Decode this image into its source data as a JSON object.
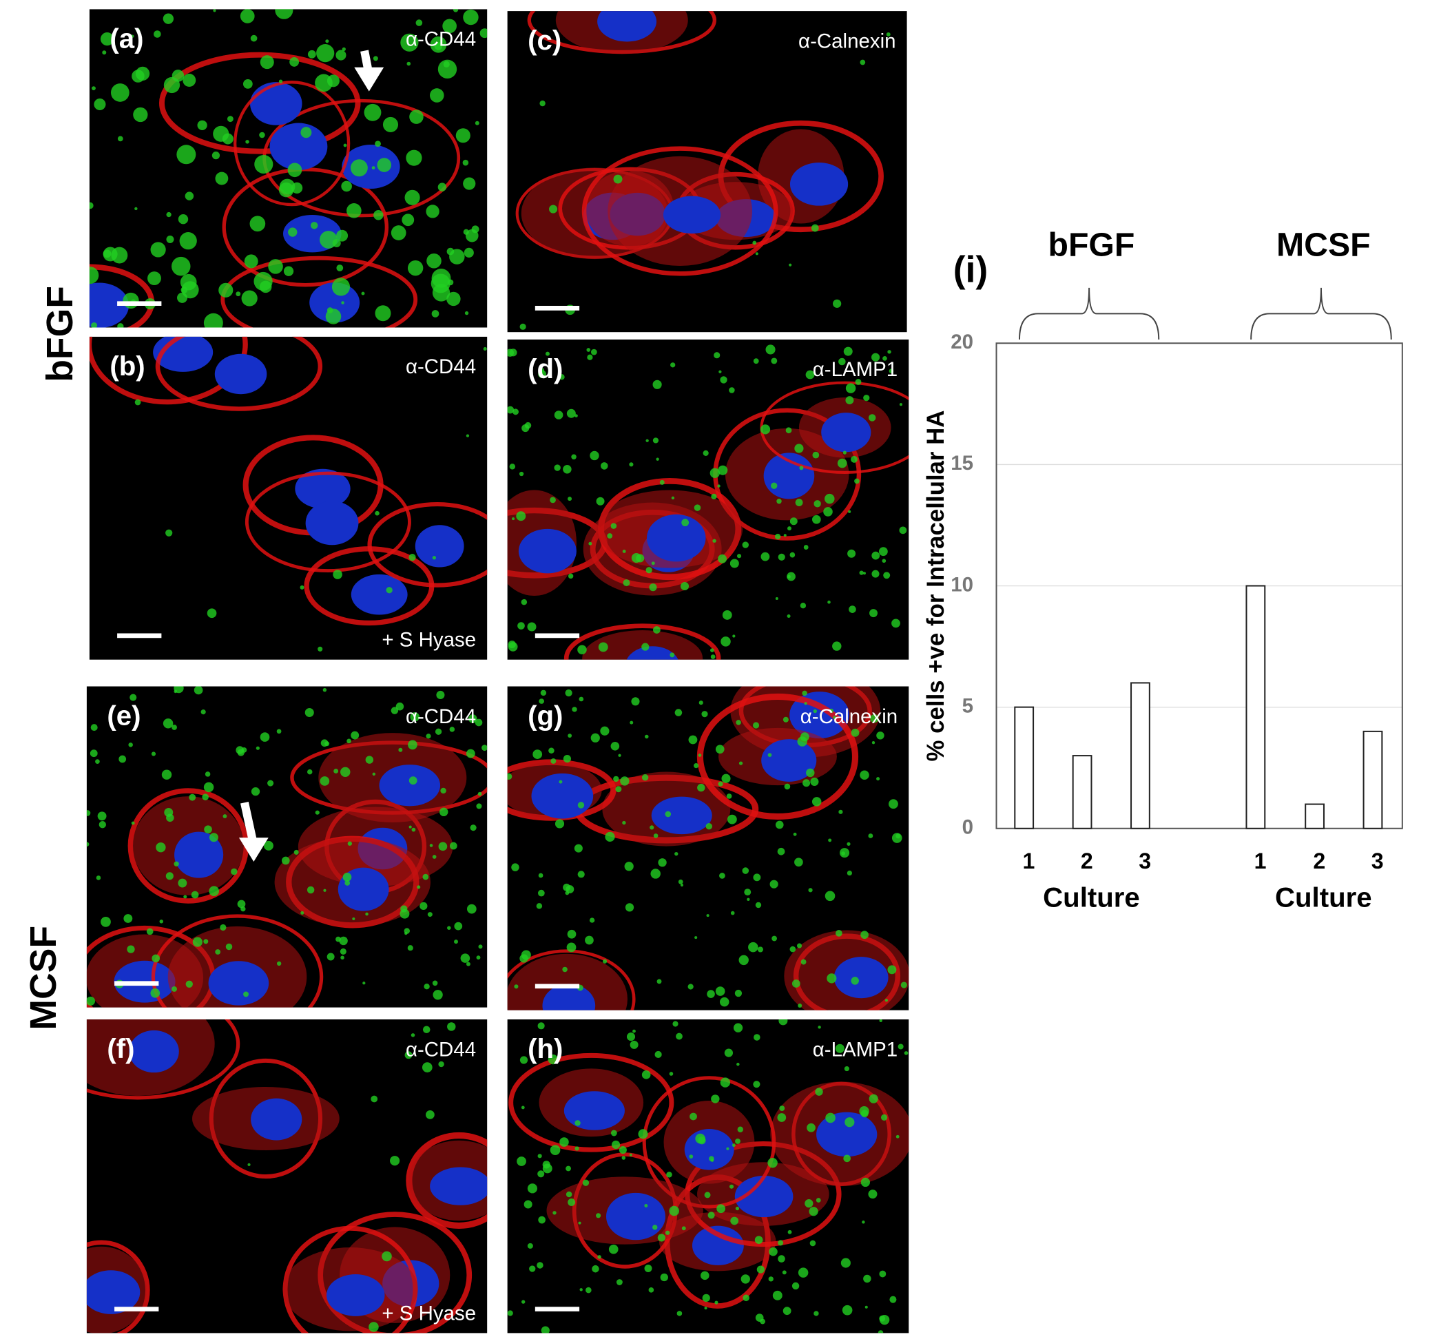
{
  "row_labels": [
    "bFGF",
    "MCSF"
  ],
  "panels": [
    {
      "label": "(a)",
      "stain": "α-CD44"
    },
    {
      "label": "(b)",
      "stain": "α-CD44",
      "treatment": "+ S Hyase"
    },
    {
      "label": "(c)",
      "stain": "α-Calnexin"
    },
    {
      "label": "(d)",
      "stain": "α-LAMP1"
    },
    {
      "label": "(e)",
      "stain": "α-CD44"
    },
    {
      "label": "(f)",
      "stain": "α-CD44",
      "treatment": "+ S Hyase"
    },
    {
      "label": "(g)",
      "stain": "α-Calnexin"
    },
    {
      "label": "(h)",
      "stain": "α-LAMP1"
    }
  ],
  "chart_data": {
    "type": "bar",
    "panel_label": "(i)",
    "y_label": "% cells +ve for Intracellular HA",
    "groups": [
      {
        "name": "bFGF",
        "x_label": "Culture",
        "categories": [
          "1",
          "2",
          "3"
        ],
        "values": [
          5,
          3,
          6
        ]
      },
      {
        "name": "MCSF",
        "x_label": "Culture",
        "categories": [
          "1",
          "2",
          "3"
        ],
        "values": [
          10,
          1,
          4
        ]
      }
    ],
    "ylim": [
      0,
      20
    ],
    "yticks": [
      0,
      5,
      10,
      15,
      20
    ],
    "grid": true,
    "color": "#ffffff"
  }
}
